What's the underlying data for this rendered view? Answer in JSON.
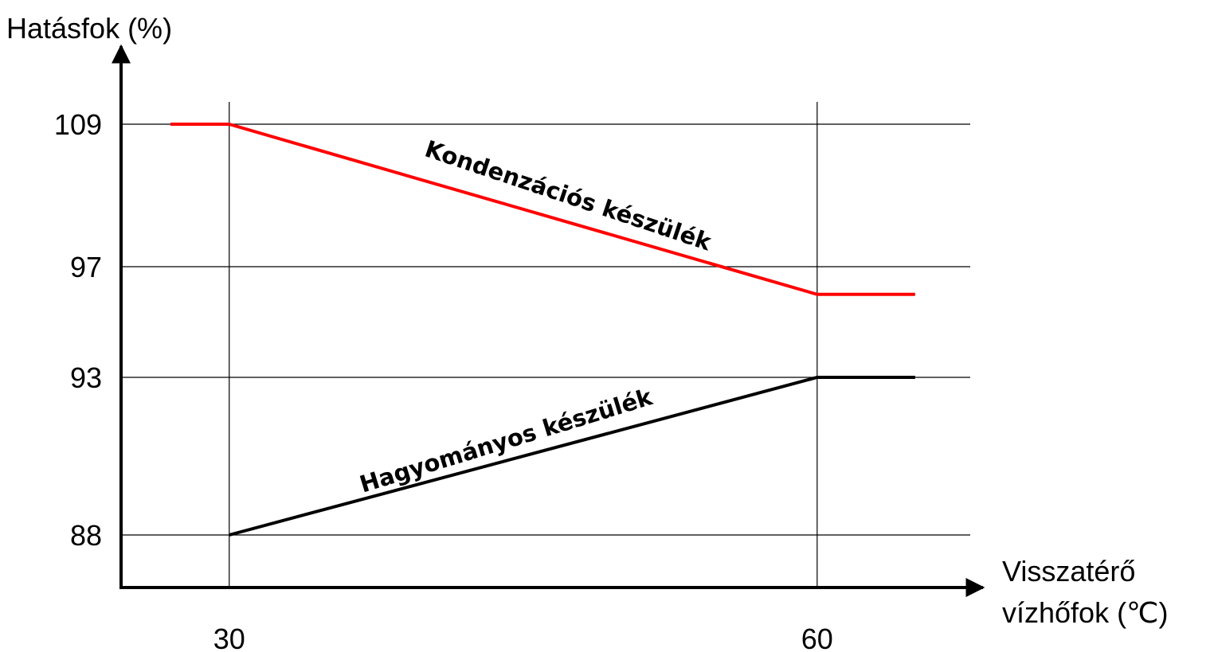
{
  "chart_data": {
    "type": "line",
    "y_label": "Hatásfok (%)",
    "x_label": [
      "Visszatérő",
      "vízhőfok (℃)"
    ],
    "xlim": [
      24.4,
      68.3
    ],
    "xticks": [
      30,
      60
    ],
    "ylim": [
      86,
      115
    ],
    "yticks": [
      88,
      93,
      97,
      109
    ],
    "grid": true,
    "series": [
      {
        "name": "Kondenzációs készülék",
        "color": "#ff0000",
        "x": [
          27,
          30,
          60,
          65
        ],
        "values": [
          109,
          109,
          96,
          96
        ]
      },
      {
        "name": "Hagyományos készülék",
        "color": "#000000",
        "x": [
          30,
          60,
          65
        ],
        "values": [
          88,
          93,
          93
        ]
      }
    ]
  }
}
